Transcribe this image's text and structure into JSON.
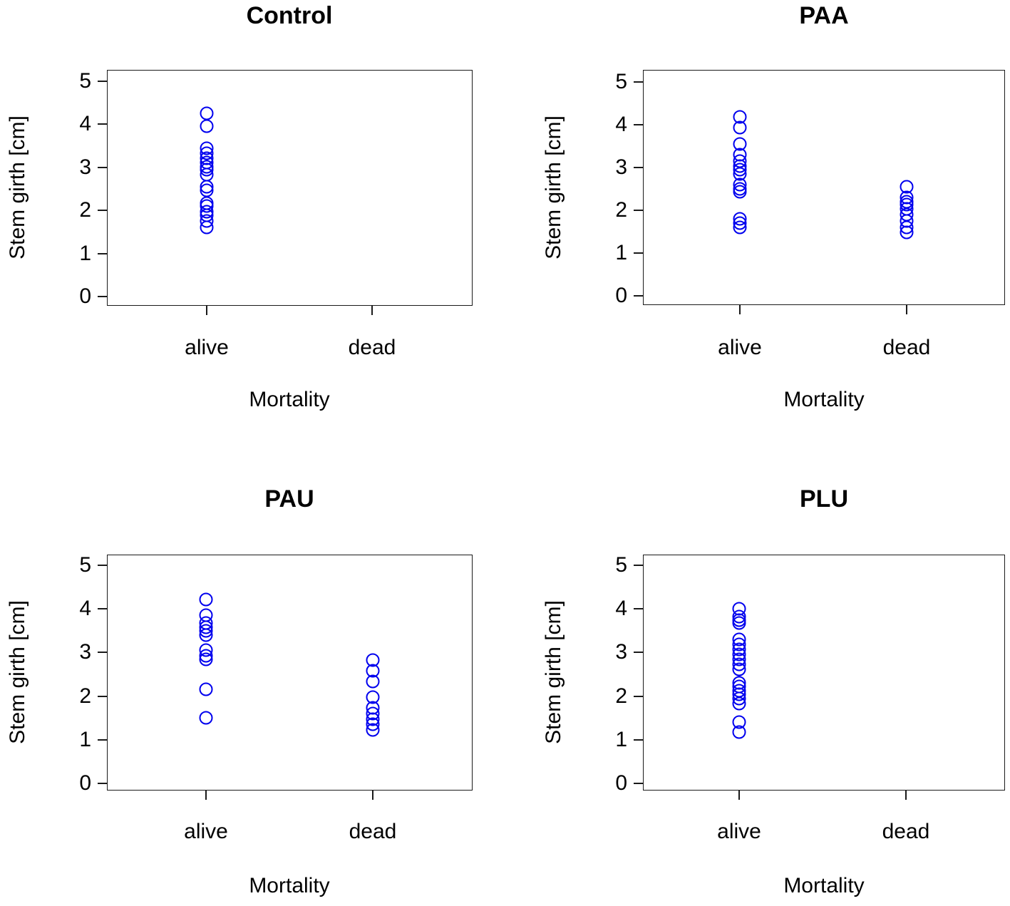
{
  "figure": {
    "background_color": "#ffffff",
    "point_color": "#0000ee",
    "axis_color": "#1a1a1a",
    "y_axis_label": "Stem girth [cm]",
    "x_axis_label": "Mortality",
    "x_categories": [
      "alive",
      "dead"
    ],
    "y_tick_labels": [
      "0",
      "1",
      "2",
      "3",
      "4",
      "5"
    ]
  },
  "chart_data": [
    {
      "type": "scatter",
      "title": "Control",
      "xlabel": "Mortality",
      "ylabel": "Stem girth [cm]",
      "x_categories": [
        "alive",
        "dead"
      ],
      "ylim": [
        0,
        5
      ],
      "y_ticks": [
        0,
        1,
        2,
        3,
        4,
        5
      ],
      "grid": false,
      "marker": "open-circle",
      "points": {
        "alive": [
          4.25,
          3.95,
          3.45,
          3.33,
          3.22,
          3.12,
          3.02,
          2.95,
          2.83,
          2.55,
          2.46,
          2.17,
          2.1,
          1.97,
          1.88,
          1.75,
          1.6
        ],
        "dead": []
      }
    },
    {
      "type": "scatter",
      "title": "PAA",
      "xlabel": "Mortality",
      "ylabel": "Stem girth [cm]",
      "x_categories": [
        "alive",
        "dead"
      ],
      "ylim": [
        0,
        5
      ],
      "y_ticks": [
        0,
        1,
        2,
        3,
        4,
        5
      ],
      "grid": false,
      "marker": "open-circle",
      "points": {
        "alive": [
          4.17,
          3.92,
          3.55,
          3.3,
          3.15,
          3.03,
          2.95,
          2.85,
          2.6,
          2.5,
          2.42,
          1.8,
          1.7,
          1.6
        ],
        "dead": [
          2.55,
          2.3,
          2.2,
          2.12,
          2.02,
          1.9,
          1.75,
          1.6,
          1.47
        ]
      }
    },
    {
      "type": "scatter",
      "title": "PAU",
      "xlabel": "Mortality",
      "ylabel": "Stem girth [cm]",
      "x_categories": [
        "alive",
        "dead"
      ],
      "ylim": [
        0,
        5
      ],
      "y_ticks": [
        0,
        1,
        2,
        3,
        4,
        5
      ],
      "grid": false,
      "marker": "open-circle",
      "points": {
        "alive": [
          4.22,
          3.85,
          3.68,
          3.58,
          3.5,
          3.4,
          3.05,
          2.92,
          2.85,
          2.15,
          1.5
        ],
        "dead": [
          2.83,
          2.58,
          2.33,
          1.98,
          1.73,
          1.6,
          1.47,
          1.35,
          1.22
        ]
      }
    },
    {
      "type": "scatter",
      "title": "PLU",
      "xlabel": "Mortality",
      "ylabel": "Stem girth [cm]",
      "x_categories": [
        "alive",
        "dead"
      ],
      "ylim": [
        0,
        5
      ],
      "y_ticks": [
        0,
        1,
        2,
        3,
        4,
        5
      ],
      "grid": false,
      "marker": "open-circle",
      "points": {
        "alive": [
          4.0,
          3.83,
          3.75,
          3.68,
          3.3,
          3.18,
          3.08,
          2.95,
          2.85,
          2.73,
          2.62,
          2.3,
          2.22,
          2.12,
          2.05,
          1.95,
          1.83,
          1.4,
          1.17
        ],
        "dead": []
      }
    }
  ]
}
